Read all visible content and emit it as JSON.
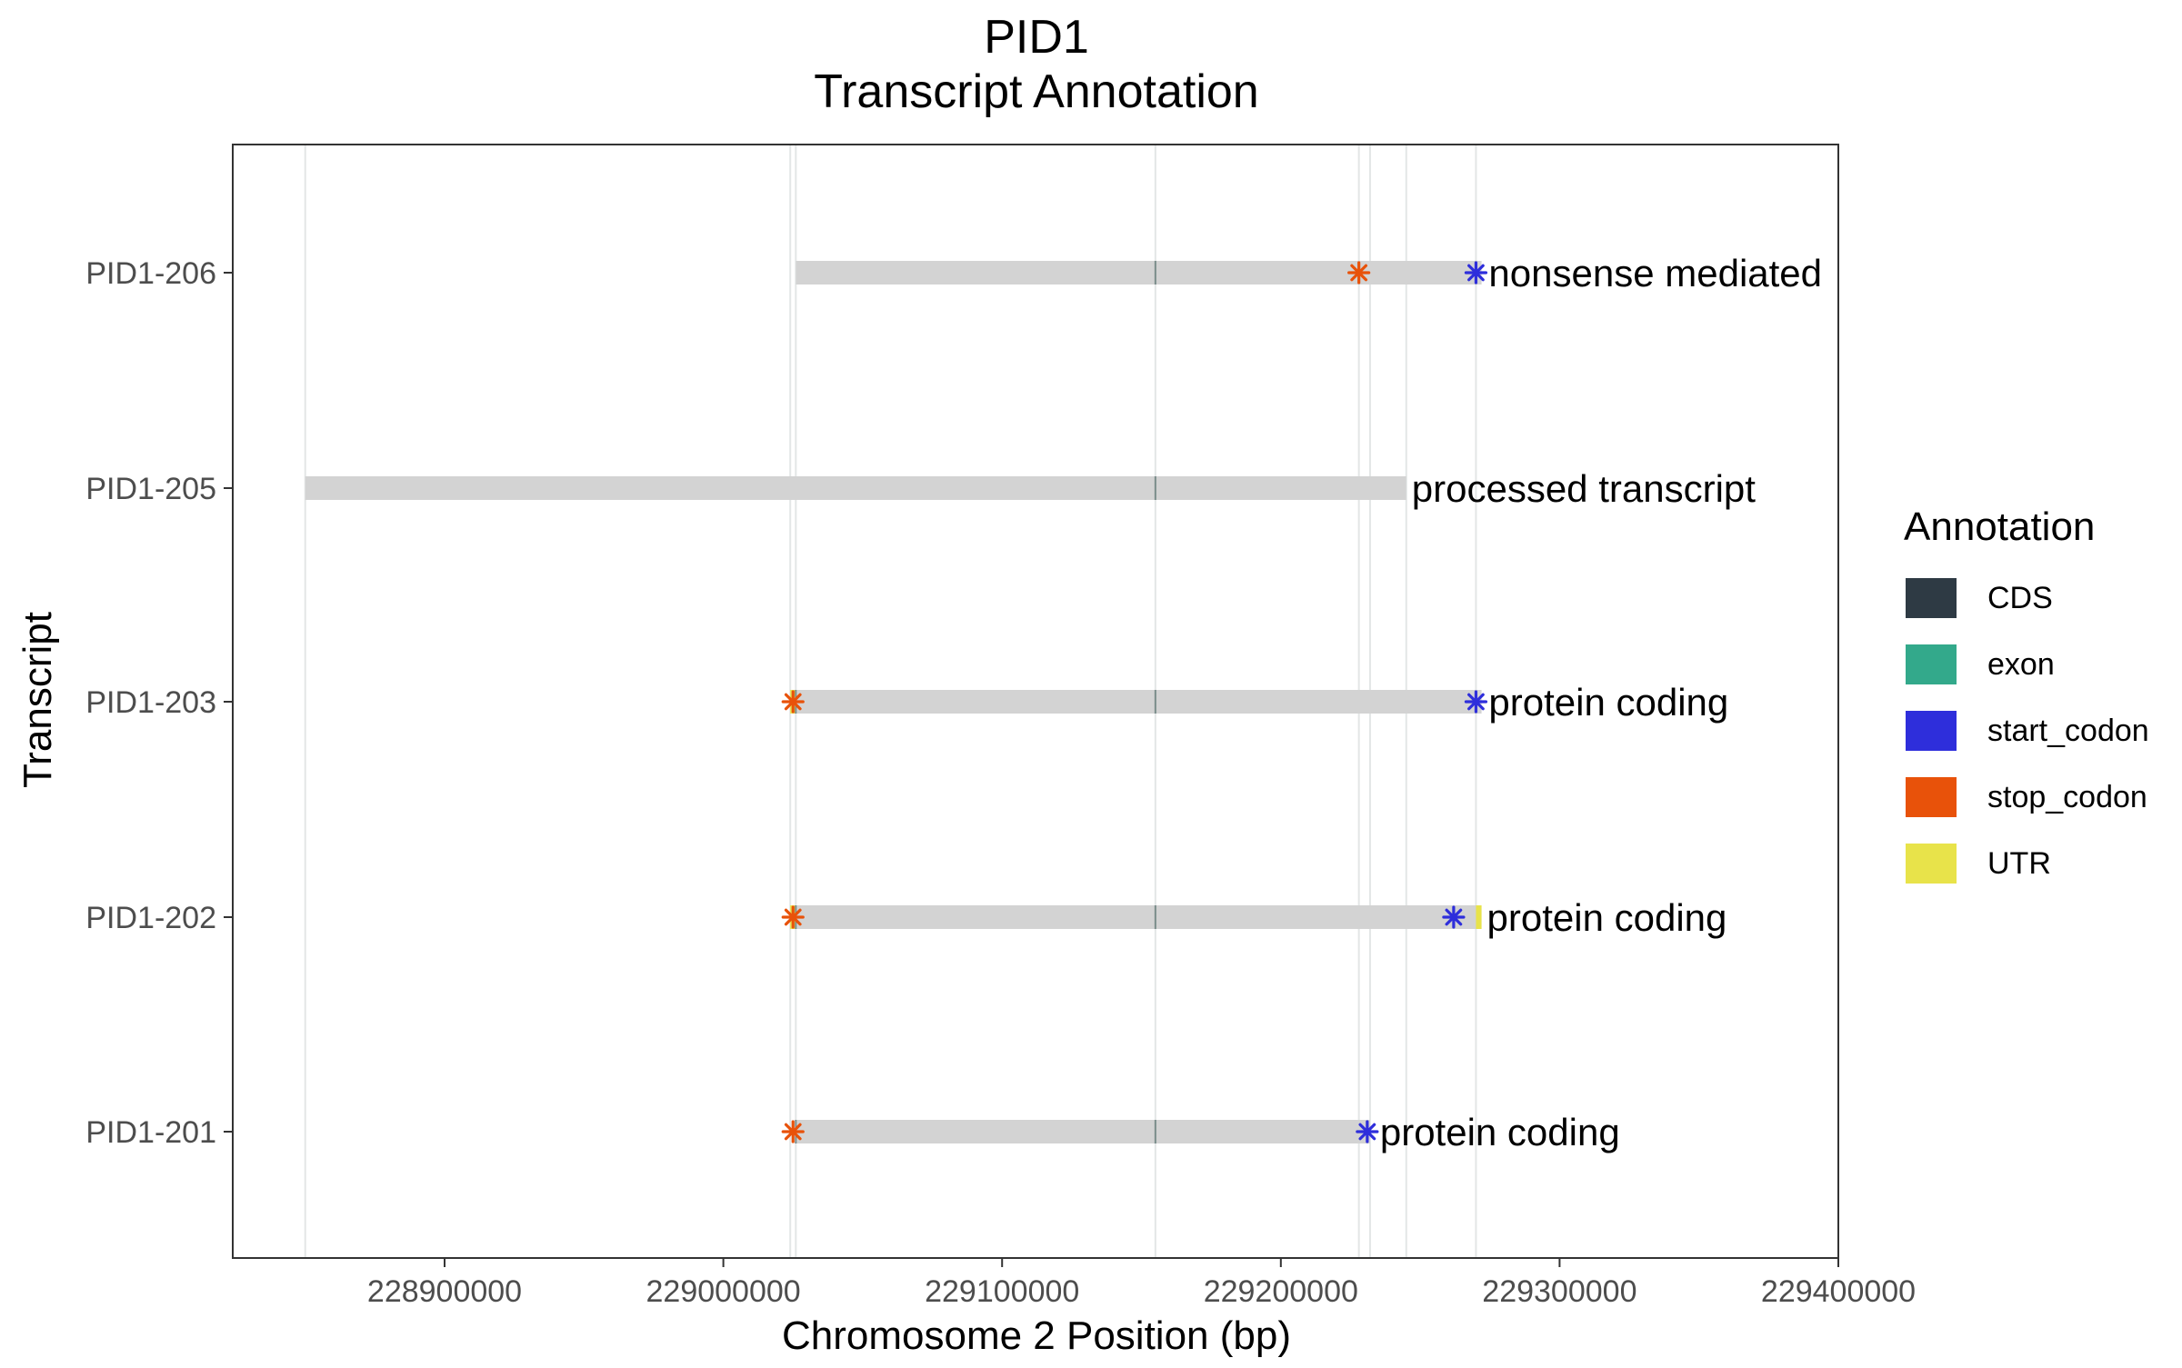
{
  "chart_data": {
    "type": "gene-track",
    "title": "PID1",
    "subtitle": "Transcript Annotation",
    "xlabel": "Chromosome 2 Position (bp)",
    "ylabel": "Transcript",
    "xlim": [
      228824000,
      229400000
    ],
    "x_ticks": [
      228900000,
      229000000,
      229100000,
      229200000,
      229300000,
      229400000
    ],
    "x_tick_labels": [
      "228900000",
      "229000000",
      "229100000",
      "229200000",
      "229300000",
      "229400000"
    ],
    "grid": "major vertical lines at feature boundaries",
    "legend_title": "Annotation",
    "legend_position": "right",
    "legend": [
      {
        "label": "CDS",
        "color": "#2E3A44"
      },
      {
        "label": "exon",
        "color": "#33A98B"
      },
      {
        "label": "start_codon",
        "color": "#2E2EDB"
      },
      {
        "label": "stop_codon",
        "color": "#E8520A"
      },
      {
        "label": "UTR",
        "color": "#E8E34A"
      }
    ],
    "guide_positions": [
      228850000,
      229024000,
      229026000,
      229155000,
      229228000,
      229232000,
      229245000,
      229270000
    ],
    "transcripts": [
      {
        "name": "PID1-206",
        "label": "nonsense mediated",
        "start": 229026000,
        "end": 229272000,
        "start_codon": 229270000,
        "stop_codon": 229228000,
        "utr": [],
        "cds_ticks": [
          229155000
        ]
      },
      {
        "name": "PID1-205",
        "label": "processed transcript",
        "start": 228850000,
        "end": 229245000,
        "start_codon": null,
        "stop_codon": null,
        "utr": [],
        "cds_ticks": [
          229155000
        ]
      },
      {
        "name": "PID1-203",
        "label": "protein coding",
        "start": 229024000,
        "end": 229272000,
        "start_codon": 229270000,
        "stop_codon": 229025000,
        "utr": [
          [
            229024000,
            229026000
          ]
        ],
        "cds_ticks": [
          229026000,
          229155000
        ]
      },
      {
        "name": "PID1-202",
        "label": "protein coding",
        "start": 229024000,
        "end": 229272000,
        "start_codon": 229262000,
        "stop_codon": 229025000,
        "utr": [
          [
            229024000,
            229026000
          ],
          [
            229270000,
            229272000
          ]
        ],
        "cds_ticks": [
          229026000,
          229155000
        ]
      },
      {
        "name": "PID1-201",
        "label": "protein coding",
        "start": 229026000,
        "end": 229232000,
        "start_codon": 229231000,
        "stop_codon": 229025000,
        "utr": [],
        "cds_ticks": [
          229026000,
          229155000
        ]
      }
    ]
  }
}
